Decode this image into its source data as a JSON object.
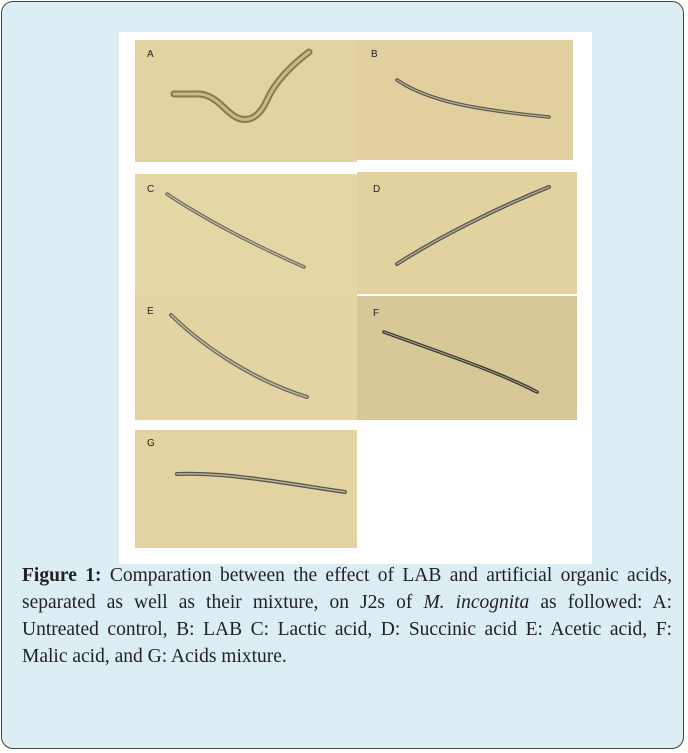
{
  "figure": {
    "panels": [
      {
        "label": "A"
      },
      {
        "label": "B"
      },
      {
        "label": "C"
      },
      {
        "label": "D"
      },
      {
        "label": "E"
      },
      {
        "label": "F"
      },
      {
        "label": "G"
      }
    ],
    "caption": {
      "label": "Figure 1:",
      "text_before": "Comparation between the effect of LAB and artificial organic acids, separated as well as their mixture, on J2s of",
      "italic": "M. incognita",
      "text_after": "as followed: A: Untreated control, B: LAB C: Lactic acid, D: Succinic acid E: Acetic acid, F: Malic acid, and G: Acids mixture."
    }
  }
}
